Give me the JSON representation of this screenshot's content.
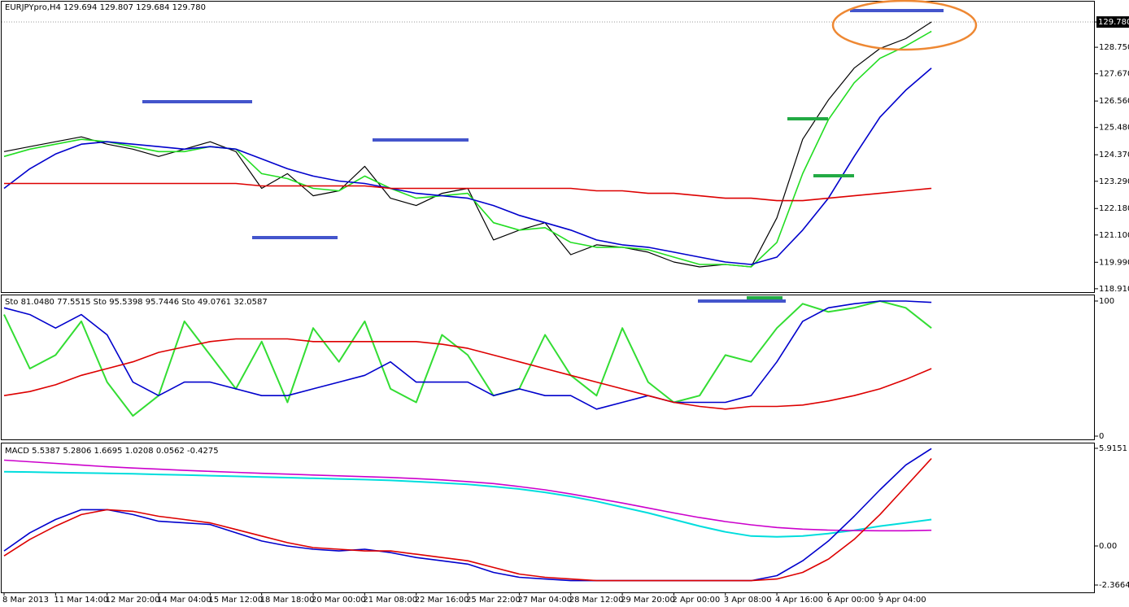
{
  "chart_data": [
    {
      "type": "line",
      "title": "EURJPYpro,H4  129.694 129.807 129.684 129.780",
      "categories": [
        "8 Mar 2013",
        null,
        "11 Mar 14:00",
        null,
        "12 Mar 20:00",
        null,
        "14 Mar 04:00",
        null,
        "15 Mar 12:00",
        null,
        "18 Mar 18:00",
        null,
        "20 Mar 00:00",
        null,
        "21 Mar 08:00",
        null,
        "22 Mar 16:00",
        null,
        "25 Mar 22:00",
        null,
        "27 Mar 04:00",
        null,
        "28 Mar 12:00",
        null,
        "29 Mar 20:00",
        null,
        "2 Apr 00:00",
        null,
        "3 Apr 08:00",
        null,
        "4 Apr 16:00",
        null,
        "6 Apr 00:00",
        null,
        "9 Apr 04:00",
        null,
        null
      ],
      "series": [
        {
          "color": "#000000",
          "values": [
            124.5,
            124.7,
            124.9,
            125.1,
            124.8,
            124.6,
            124.3,
            124.6,
            124.9,
            124.5,
            123.0,
            123.6,
            122.7,
            122.9,
            123.9,
            122.6,
            122.3,
            122.8,
            123.0,
            120.9,
            121.3,
            121.6,
            120.3,
            120.7,
            120.6,
            120.4,
            120.0,
            119.8,
            119.9,
            119.8,
            121.8,
            125.0,
            126.6,
            127.9,
            128.7,
            129.1,
            129.78
          ]
        },
        {
          "color": "#22dd22",
          "values": [
            124.3,
            124.6,
            124.8,
            125.0,
            124.9,
            124.7,
            124.5,
            124.5,
            124.7,
            124.6,
            123.6,
            123.4,
            123.0,
            122.9,
            123.5,
            123.0,
            122.6,
            122.7,
            122.8,
            121.6,
            121.3,
            121.4,
            120.8,
            120.6,
            120.6,
            120.5,
            120.2,
            119.9,
            119.9,
            119.8,
            120.8,
            123.6,
            125.8,
            127.3,
            128.3,
            128.8,
            129.4
          ]
        },
        {
          "color": "#0000cc",
          "values": [
            123.0,
            123.8,
            124.4,
            124.8,
            124.9,
            124.8,
            124.7,
            124.6,
            124.7,
            124.6,
            124.2,
            123.8,
            123.5,
            123.3,
            123.2,
            123.0,
            122.8,
            122.7,
            122.6,
            122.3,
            121.9,
            121.6,
            121.3,
            120.9,
            120.7,
            120.6,
            120.4,
            120.2,
            120.0,
            119.9,
            120.2,
            121.3,
            122.6,
            124.3,
            125.9,
            127.0,
            127.9
          ]
        },
        {
          "color": "#dd0000",
          "values": [
            123.2,
            123.2,
            123.2,
            123.2,
            123.2,
            123.2,
            123.2,
            123.2,
            123.2,
            123.2,
            123.1,
            123.1,
            123.1,
            123.1,
            123.1,
            123.0,
            123.0,
            123.0,
            123.0,
            123.0,
            123.0,
            123.0,
            123.0,
            122.9,
            122.9,
            122.8,
            122.8,
            122.7,
            122.6,
            122.6,
            122.5,
            122.5,
            122.6,
            122.7,
            122.8,
            122.9,
            123.0
          ]
        }
      ],
      "ylim": [
        118.74,
        130.61
      ],
      "yticks": [
        {
          "value": 129.78,
          "label": "129.780"
        },
        {
          "value": 128.75,
          "label": "128.750"
        },
        {
          "value": 127.67,
          "label": "127.670"
        },
        {
          "value": 126.56,
          "label": "126.560"
        },
        {
          "value": 125.48,
          "label": "125.480"
        },
        {
          "value": 124.37,
          "label": "124.370"
        },
        {
          "value": 123.29,
          "label": "123.290"
        },
        {
          "value": 122.18,
          "label": "122.180"
        },
        {
          "value": 121.1,
          "label": "121.100"
        },
        {
          "value": 119.99,
          "label": "119.990"
        },
        {
          "value": 118.91,
          "label": "118.910"
        }
      ]
    },
    {
      "type": "line",
      "title": "Sto 81.0480 77.5515  Sto 95.5398 95.7446  Sto 49.0761 32.0587",
      "series": [
        {
          "color": "#33dd33",
          "values": [
            90,
            50,
            60,
            85,
            40,
            15,
            30,
            85,
            60,
            35,
            70,
            25,
            80,
            55,
            85,
            35,
            25,
            75,
            60,
            30,
            35,
            75,
            45,
            30,
            80,
            40,
            25,
            30,
            60,
            55,
            80,
            98,
            92,
            95,
            100,
            95,
            80
          ]
        },
        {
          "color": "#0000cc",
          "values": [
            95,
            90,
            80,
            90,
            75,
            40,
            30,
            40,
            40,
            35,
            30,
            30,
            35,
            40,
            45,
            55,
            40,
            40,
            40,
            30,
            35,
            30,
            30,
            20,
            25,
            30,
            25,
            25,
            25,
            30,
            55,
            85,
            95,
            98,
            100,
            100,
            99
          ]
        },
        {
          "color": "#dd0000",
          "values": [
            30,
            33,
            38,
            45,
            50,
            55,
            62,
            66,
            70,
            72,
            72,
            72,
            70,
            70,
            70,
            70,
            70,
            68,
            65,
            60,
            55,
            50,
            45,
            40,
            35,
            30,
            25,
            22,
            20,
            22,
            22,
            23,
            26,
            30,
            35,
            42,
            50
          ]
        }
      ],
      "ylim": [
        -2.4,
        104.2
      ],
      "yticks": [
        0,
        100
      ]
    },
    {
      "type": "line",
      "title": "MACD 5.5387 5.2806 1.6695 1.0208 0.0562 -0.4275",
      "series": [
        {
          "color": "#00dddd",
          "values": [
            4.5,
            4.48,
            4.45,
            4.42,
            4.4,
            4.37,
            4.33,
            4.3,
            4.26,
            4.22,
            4.18,
            4.14,
            4.1,
            4.06,
            4.02,
            3.97,
            3.9,
            3.82,
            3.73,
            3.6,
            3.45,
            3.25,
            3.0,
            2.7,
            2.35,
            2.0,
            1.6,
            1.2,
            0.85,
            0.6,
            0.55,
            0.6,
            0.75,
            0.95,
            1.2,
            1.4,
            1.6
          ]
        },
        {
          "color": "#cc00cc",
          "values": [
            5.2,
            5.1,
            5.0,
            4.9,
            4.8,
            4.72,
            4.65,
            4.58,
            4.52,
            4.46,
            4.4,
            4.35,
            4.3,
            4.25,
            4.2,
            4.15,
            4.08,
            4.0,
            3.9,
            3.78,
            3.6,
            3.4,
            3.15,
            2.88,
            2.6,
            2.3,
            2.0,
            1.72,
            1.48,
            1.28,
            1.12,
            1.02,
            0.96,
            0.93,
            0.92,
            0.92,
            0.95
          ]
        },
        {
          "color": "#0000cc",
          "values": [
            -0.3,
            0.8,
            1.6,
            2.2,
            2.2,
            1.9,
            1.5,
            1.4,
            1.3,
            0.8,
            0.3,
            0.0,
            -0.2,
            -0.3,
            -0.2,
            -0.4,
            -0.7,
            -0.9,
            -1.1,
            -1.6,
            -1.9,
            -2.0,
            -2.1,
            -2.1,
            -2.1,
            -2.1,
            -2.1,
            -2.1,
            -2.1,
            -2.1,
            -1.8,
            -0.9,
            0.3,
            1.8,
            3.4,
            4.9,
            5.9
          ]
        },
        {
          "color": "#dd0000",
          "values": [
            -0.6,
            0.4,
            1.2,
            1.9,
            2.2,
            2.1,
            1.8,
            1.6,
            1.4,
            1.0,
            0.6,
            0.2,
            -0.1,
            -0.2,
            -0.3,
            -0.3,
            -0.5,
            -0.7,
            -0.9,
            -1.3,
            -1.7,
            -1.9,
            -2.0,
            -2.1,
            -2.1,
            -2.1,
            -2.1,
            -2.1,
            -2.1,
            -2.1,
            -2.0,
            -1.6,
            -0.8,
            0.4,
            1.9,
            3.6,
            5.3
          ]
        }
      ],
      "ylim": [
        -2.81,
        6.21
      ],
      "yticks": [
        5.9151,
        {
          "value": 0,
          "label": "0.00"
        },
        -2.3664
      ]
    }
  ]
}
